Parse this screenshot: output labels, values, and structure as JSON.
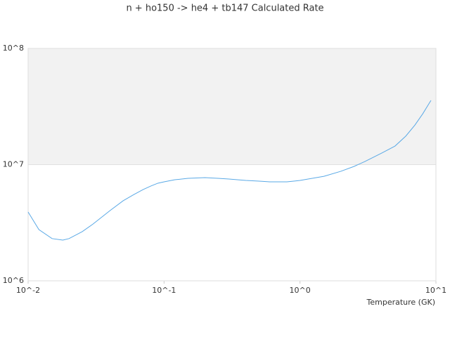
{
  "chart_data": {
    "type": "line",
    "title": "n + ho150 -> he4 + tb147 Calculated Rate",
    "x_label": "Temperature (GK)",
    "x": [
      0.01,
      0.012,
      0.015,
      0.018,
      0.02,
      0.025,
      0.03,
      0.04,
      0.05,
      0.06,
      0.07,
      0.08,
      0.09,
      0.1,
      0.12,
      0.15,
      0.2,
      0.25,
      0.3,
      0.4,
      0.5,
      0.6,
      0.7,
      0.8,
      0.9,
      1,
      1.5,
      2,
      2.5,
      3,
      4,
      5,
      6,
      7,
      8,
      9,
      9.2
    ],
    "series": [
      {
        "color": "#5aa9e6",
        "values": [
          3910000,
          2760000,
          2310000,
          2240000,
          2310000,
          2650000,
          3080000,
          4020000,
          4890000,
          5530000,
          6100000,
          6550000,
          6920000,
          7110000,
          7410000,
          7620000,
          7730000,
          7620000,
          7520000,
          7310000,
          7210000,
          7110000,
          7110000,
          7110000,
          7210000,
          7310000,
          7940000,
          8770000,
          9660000,
          10640000,
          12600000,
          14450000,
          17600000,
          21900000,
          27400000,
          34300000,
          35700000
        ]
      }
    ],
    "xscale": "log",
    "yscale": "log",
    "xlim": [
      0.01,
      10
    ],
    "ylim": [
      1000000,
      100000000
    ],
    "xticks": [
      {
        "value": 0.01,
        "label": "10^-2"
      },
      {
        "value": 0.1,
        "label": "10^-1"
      },
      {
        "value": 1,
        "label": "10^0"
      },
      {
        "value": 10,
        "label": "10^1"
      }
    ],
    "yticks": [
      {
        "value": 1000000,
        "label": "10^6"
      },
      {
        "value": 10000000,
        "label": "10^7"
      },
      {
        "value": 100000000,
        "label": "10^8"
      }
    ],
    "grid": true
  }
}
